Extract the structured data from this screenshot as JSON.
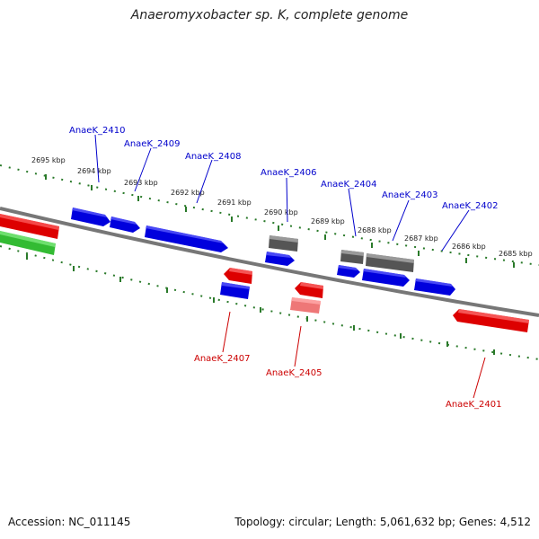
{
  "title": "Anaeromyxobacter sp. K, complete genome",
  "footer": {
    "accession": "Accession: NC_011145",
    "topology": "Topology: circular; Length: 5,061,632 bp; Genes: 4,512"
  },
  "ticks": [
    "2695 kbp",
    "2694 kbp",
    "2693 kbp",
    "2692 kbp",
    "2691 kbp",
    "2690 kbp",
    "2689 kbp",
    "2688 kbp",
    "2687 kbp",
    "2686 kbp",
    "2685 kbp"
  ],
  "labels_top": [
    "AnaeK_2410",
    "AnaeK_2409",
    "AnaeK_2408",
    "AnaeK_2406",
    "AnaeK_2404",
    "AnaeK_2403",
    "AnaeK_2402"
  ],
  "labels_bottom": [
    "AnaeK_2407",
    "AnaeK_2405",
    "AnaeK_2401"
  ],
  "colors": {
    "forward": "#0000dd",
    "reverse": "#dd0000",
    "gray": "#555555",
    "pink": "#ee7777",
    "green": "#33bb33",
    "backbone": "#777777",
    "ruler": "#2a7a2a",
    "label_top": "#0000cc",
    "label_bottom": "#cc0000"
  }
}
